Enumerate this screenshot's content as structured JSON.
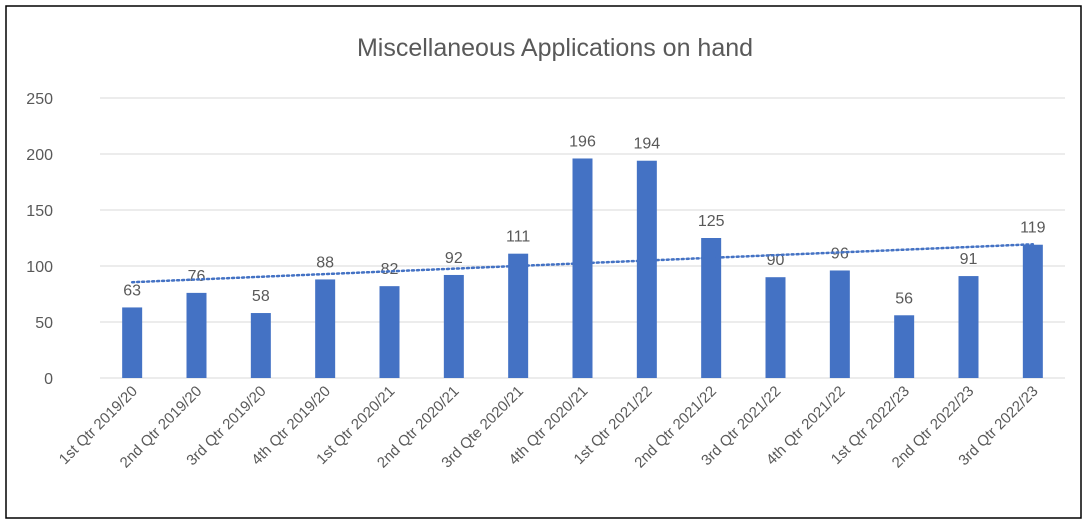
{
  "chart_data": {
    "type": "bar",
    "title": "Miscellaneous Applications on hand",
    "categories": [
      "1st Qtr 2019/20",
      "2nd Qtr 2019/20",
      "3rd Qtr 2019/20",
      "4th Qtr 2019/20",
      "1st Qtr 2020/21",
      "2nd Qtr 2020/21",
      "3rd Qte 2020/21",
      "4th Qtr 2020/21",
      "1st Qtr 2021/22",
      "2nd Qtr 2021/22",
      "3rd Qtr 2021/22",
      "4th Qtr 2021/22",
      "1st Qtr 2022/23",
      "2nd Qtr 2022/23",
      "3rd Qtr 2022/23"
    ],
    "values": [
      63,
      76,
      58,
      88,
      82,
      92,
      111,
      196,
      194,
      125,
      90,
      96,
      56,
      91,
      119
    ],
    "color": "#4472c4",
    "ylim": [
      0,
      250
    ],
    "yticks": [
      0,
      50,
      100,
      150,
      200,
      250
    ],
    "grid": true,
    "trendline": "linear"
  }
}
